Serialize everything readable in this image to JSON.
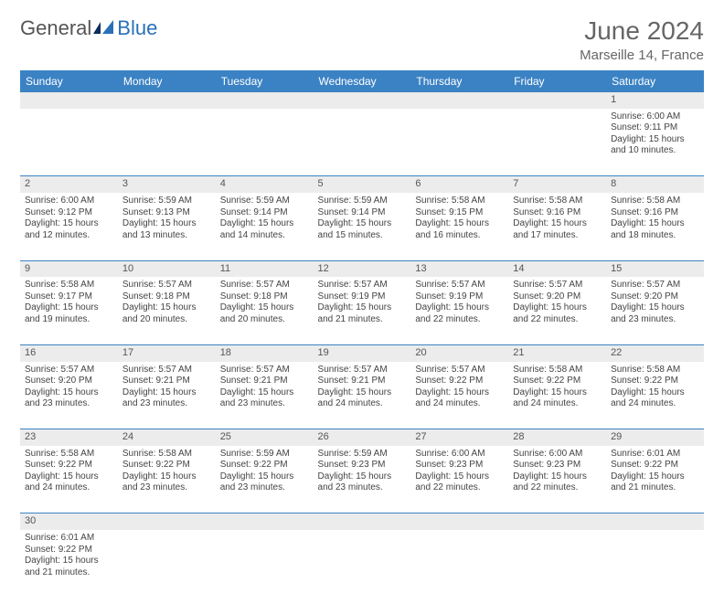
{
  "logo": {
    "first": "General",
    "second": "Blue"
  },
  "title": "June 2024",
  "location": "Marseille 14, France",
  "colors": {
    "header_bg": "#3b82c4",
    "header_text": "#ffffff",
    "daynum_bg": "#ececec",
    "cell_border": "#3b82c4",
    "text": "#444444",
    "title_text": "#666666",
    "logo_second": "#2a70b8"
  },
  "day_headers": [
    "Sunday",
    "Monday",
    "Tuesday",
    "Wednesday",
    "Thursday",
    "Friday",
    "Saturday"
  ],
  "weeks": [
    {
      "nums": [
        "",
        "",
        "",
        "",
        "",
        "",
        "1"
      ],
      "cells": [
        null,
        null,
        null,
        null,
        null,
        null,
        {
          "sunrise": "Sunrise: 6:00 AM",
          "sunset": "Sunset: 9:11 PM",
          "daylight": "Daylight: 15 hours and 10 minutes."
        }
      ]
    },
    {
      "nums": [
        "2",
        "3",
        "4",
        "5",
        "6",
        "7",
        "8"
      ],
      "cells": [
        {
          "sunrise": "Sunrise: 6:00 AM",
          "sunset": "Sunset: 9:12 PM",
          "daylight": "Daylight: 15 hours and 12 minutes."
        },
        {
          "sunrise": "Sunrise: 5:59 AM",
          "sunset": "Sunset: 9:13 PM",
          "daylight": "Daylight: 15 hours and 13 minutes."
        },
        {
          "sunrise": "Sunrise: 5:59 AM",
          "sunset": "Sunset: 9:14 PM",
          "daylight": "Daylight: 15 hours and 14 minutes."
        },
        {
          "sunrise": "Sunrise: 5:59 AM",
          "sunset": "Sunset: 9:14 PM",
          "daylight": "Daylight: 15 hours and 15 minutes."
        },
        {
          "sunrise": "Sunrise: 5:58 AM",
          "sunset": "Sunset: 9:15 PM",
          "daylight": "Daylight: 15 hours and 16 minutes."
        },
        {
          "sunrise": "Sunrise: 5:58 AM",
          "sunset": "Sunset: 9:16 PM",
          "daylight": "Daylight: 15 hours and 17 minutes."
        },
        {
          "sunrise": "Sunrise: 5:58 AM",
          "sunset": "Sunset: 9:16 PM",
          "daylight": "Daylight: 15 hours and 18 minutes."
        }
      ]
    },
    {
      "nums": [
        "9",
        "10",
        "11",
        "12",
        "13",
        "14",
        "15"
      ],
      "cells": [
        {
          "sunrise": "Sunrise: 5:58 AM",
          "sunset": "Sunset: 9:17 PM",
          "daylight": "Daylight: 15 hours and 19 minutes."
        },
        {
          "sunrise": "Sunrise: 5:57 AM",
          "sunset": "Sunset: 9:18 PM",
          "daylight": "Daylight: 15 hours and 20 minutes."
        },
        {
          "sunrise": "Sunrise: 5:57 AM",
          "sunset": "Sunset: 9:18 PM",
          "daylight": "Daylight: 15 hours and 20 minutes."
        },
        {
          "sunrise": "Sunrise: 5:57 AM",
          "sunset": "Sunset: 9:19 PM",
          "daylight": "Daylight: 15 hours and 21 minutes."
        },
        {
          "sunrise": "Sunrise: 5:57 AM",
          "sunset": "Sunset: 9:19 PM",
          "daylight": "Daylight: 15 hours and 22 minutes."
        },
        {
          "sunrise": "Sunrise: 5:57 AM",
          "sunset": "Sunset: 9:20 PM",
          "daylight": "Daylight: 15 hours and 22 minutes."
        },
        {
          "sunrise": "Sunrise: 5:57 AM",
          "sunset": "Sunset: 9:20 PM",
          "daylight": "Daylight: 15 hours and 23 minutes."
        }
      ]
    },
    {
      "nums": [
        "16",
        "17",
        "18",
        "19",
        "20",
        "21",
        "22"
      ],
      "cells": [
        {
          "sunrise": "Sunrise: 5:57 AM",
          "sunset": "Sunset: 9:20 PM",
          "daylight": "Daylight: 15 hours and 23 minutes."
        },
        {
          "sunrise": "Sunrise: 5:57 AM",
          "sunset": "Sunset: 9:21 PM",
          "daylight": "Daylight: 15 hours and 23 minutes."
        },
        {
          "sunrise": "Sunrise: 5:57 AM",
          "sunset": "Sunset: 9:21 PM",
          "daylight": "Daylight: 15 hours and 23 minutes."
        },
        {
          "sunrise": "Sunrise: 5:57 AM",
          "sunset": "Sunset: 9:21 PM",
          "daylight": "Daylight: 15 hours and 24 minutes."
        },
        {
          "sunrise": "Sunrise: 5:57 AM",
          "sunset": "Sunset: 9:22 PM",
          "daylight": "Daylight: 15 hours and 24 minutes."
        },
        {
          "sunrise": "Sunrise: 5:58 AM",
          "sunset": "Sunset: 9:22 PM",
          "daylight": "Daylight: 15 hours and 24 minutes."
        },
        {
          "sunrise": "Sunrise: 5:58 AM",
          "sunset": "Sunset: 9:22 PM",
          "daylight": "Daylight: 15 hours and 24 minutes."
        }
      ]
    },
    {
      "nums": [
        "23",
        "24",
        "25",
        "26",
        "27",
        "28",
        "29"
      ],
      "cells": [
        {
          "sunrise": "Sunrise: 5:58 AM",
          "sunset": "Sunset: 9:22 PM",
          "daylight": "Daylight: 15 hours and 24 minutes."
        },
        {
          "sunrise": "Sunrise: 5:58 AM",
          "sunset": "Sunset: 9:22 PM",
          "daylight": "Daylight: 15 hours and 23 minutes."
        },
        {
          "sunrise": "Sunrise: 5:59 AM",
          "sunset": "Sunset: 9:22 PM",
          "daylight": "Daylight: 15 hours and 23 minutes."
        },
        {
          "sunrise": "Sunrise: 5:59 AM",
          "sunset": "Sunset: 9:23 PM",
          "daylight": "Daylight: 15 hours and 23 minutes."
        },
        {
          "sunrise": "Sunrise: 6:00 AM",
          "sunset": "Sunset: 9:23 PM",
          "daylight": "Daylight: 15 hours and 22 minutes."
        },
        {
          "sunrise": "Sunrise: 6:00 AM",
          "sunset": "Sunset: 9:23 PM",
          "daylight": "Daylight: 15 hours and 22 minutes."
        },
        {
          "sunrise": "Sunrise: 6:01 AM",
          "sunset": "Sunset: 9:22 PM",
          "daylight": "Daylight: 15 hours and 21 minutes."
        }
      ]
    },
    {
      "nums": [
        "30",
        "",
        "",
        "",
        "",
        "",
        ""
      ],
      "cells": [
        {
          "sunrise": "Sunrise: 6:01 AM",
          "sunset": "Sunset: 9:22 PM",
          "daylight": "Daylight: 15 hours and 21 minutes."
        },
        null,
        null,
        null,
        null,
        null,
        null
      ]
    }
  ]
}
